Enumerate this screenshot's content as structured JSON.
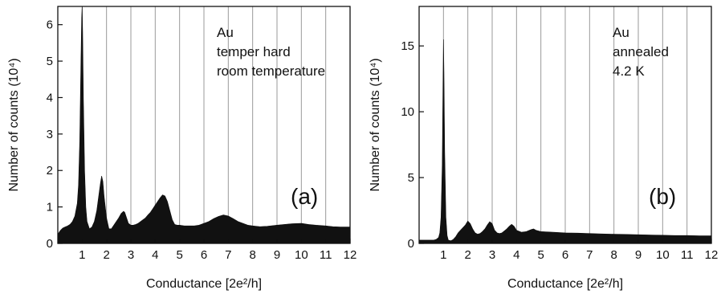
{
  "chart_data": [
    {
      "type": "area",
      "panel_label": "(a)",
      "annotation": [
        "Au",
        "temper hard",
        "room temperature"
      ],
      "xlabel": "Conductance [2e²/h]",
      "ylabel": "Number of counts (10⁴)",
      "xlim": [
        0,
        12
      ],
      "ylim": [
        0,
        6.5
      ],
      "x_ticks": [
        1,
        2,
        3,
        4,
        5,
        6,
        7,
        8,
        9,
        10,
        11,
        12
      ],
      "y_ticks": [
        0,
        1,
        2,
        3,
        4,
        5,
        6
      ],
      "vertical_gridlines": [
        1,
        2,
        3,
        4,
        5,
        6,
        7,
        8,
        9,
        10,
        11
      ],
      "x": [
        0,
        0.1,
        0.2,
        0.3,
        0.4,
        0.5,
        0.6,
        0.7,
        0.8,
        0.85,
        0.9,
        0.95,
        0.98,
        1.0,
        1.02,
        1.05,
        1.1,
        1.15,
        1.2,
        1.3,
        1.4,
        1.5,
        1.6,
        1.7,
        1.75,
        1.8,
        1.85,
        1.9,
        2.0,
        2.1,
        2.2,
        2.3,
        2.4,
        2.5,
        2.6,
        2.7,
        2.75,
        2.8,
        2.9,
        3.0,
        3.1,
        3.2,
        3.3,
        3.4,
        3.5,
        3.6,
        3.7,
        3.8,
        3.9,
        4.0,
        4.1,
        4.2,
        4.3,
        4.4,
        4.5,
        4.6,
        4.7,
        4.8,
        4.9,
        5.0,
        5.2,
        5.4,
        5.6,
        5.8,
        6.0,
        6.2,
        6.4,
        6.6,
        6.8,
        7.0,
        7.2,
        7.4,
        7.6,
        7.8,
        8.0,
        8.3,
        8.6,
        9.0,
        9.3,
        9.6,
        10.0,
        10.3,
        10.6,
        11.0,
        11.3,
        11.6,
        12.0
      ],
      "y": [
        0.25,
        0.35,
        0.42,
        0.45,
        0.48,
        0.52,
        0.6,
        0.75,
        1.1,
        1.6,
        2.8,
        5.0,
        6.2,
        6.5,
        5.8,
        4.0,
        2.0,
        1.0,
        0.6,
        0.4,
        0.45,
        0.6,
        0.9,
        1.4,
        1.65,
        1.85,
        1.7,
        1.3,
        0.7,
        0.4,
        0.4,
        0.5,
        0.6,
        0.7,
        0.82,
        0.88,
        0.85,
        0.75,
        0.55,
        0.5,
        0.5,
        0.52,
        0.55,
        0.6,
        0.65,
        0.7,
        0.78,
        0.85,
        0.95,
        1.05,
        1.15,
        1.25,
        1.33,
        1.3,
        1.15,
        0.9,
        0.65,
        0.52,
        0.5,
        0.5,
        0.48,
        0.48,
        0.48,
        0.5,
        0.55,
        0.6,
        0.68,
        0.74,
        0.78,
        0.75,
        0.68,
        0.6,
        0.55,
        0.5,
        0.48,
        0.46,
        0.47,
        0.5,
        0.52,
        0.54,
        0.55,
        0.52,
        0.5,
        0.48,
        0.46,
        0.45,
        0.45
      ]
    },
    {
      "type": "area",
      "panel_label": "(b)",
      "annotation": [
        "Au",
        "annealed",
        "4.2 K"
      ],
      "xlabel": "Conductance [2e²/h]",
      "ylabel": "Number of counts (10⁴)",
      "xlim": [
        0,
        12
      ],
      "ylim": [
        0,
        18
      ],
      "x_ticks": [
        1,
        2,
        3,
        4,
        5,
        6,
        7,
        8,
        9,
        10,
        11,
        12
      ],
      "y_ticks": [
        0,
        5,
        10,
        15
      ],
      "vertical_gridlines": [
        1,
        2,
        3,
        4,
        5,
        6,
        7,
        8,
        9,
        10,
        11
      ],
      "x": [
        0,
        0.1,
        0.2,
        0.3,
        0.4,
        0.5,
        0.6,
        0.7,
        0.8,
        0.85,
        0.9,
        0.95,
        0.98,
        1.0,
        1.02,
        1.05,
        1.1,
        1.15,
        1.2,
        1.3,
        1.4,
        1.5,
        1.6,
        1.7,
        1.8,
        1.9,
        2.0,
        2.1,
        2.2,
        2.3,
        2.4,
        2.5,
        2.6,
        2.7,
        2.8,
        2.9,
        3.0,
        3.1,
        3.2,
        3.3,
        3.4,
        3.5,
        3.6,
        3.7,
        3.8,
        3.9,
        4.0,
        4.2,
        4.4,
        4.6,
        4.7,
        4.8,
        5.0,
        5.5,
        6.0,
        6.5,
        7.0,
        7.5,
        8.0,
        8.5,
        9.0,
        9.5,
        10.0,
        10.5,
        11.0,
        11.5,
        12.0
      ],
      "y": [
        0.25,
        0.25,
        0.25,
        0.25,
        0.25,
        0.25,
        0.25,
        0.3,
        0.45,
        0.8,
        2.0,
        6.0,
        12.0,
        15.5,
        13.0,
        7.0,
        2.0,
        0.6,
        0.25,
        0.2,
        0.3,
        0.5,
        0.8,
        1.0,
        1.2,
        1.4,
        1.7,
        1.5,
        1.1,
        0.8,
        0.7,
        0.75,
        0.9,
        1.1,
        1.4,
        1.65,
        1.5,
        1.0,
        0.8,
        0.75,
        0.8,
        0.95,
        1.1,
        1.3,
        1.45,
        1.3,
        1.0,
        0.85,
        0.9,
        1.05,
        1.1,
        1.0,
        0.9,
        0.85,
        0.8,
        0.78,
        0.75,
        0.72,
        0.7,
        0.68,
        0.66,
        0.64,
        0.62,
        0.6,
        0.6,
        0.58,
        0.58
      ]
    }
  ]
}
